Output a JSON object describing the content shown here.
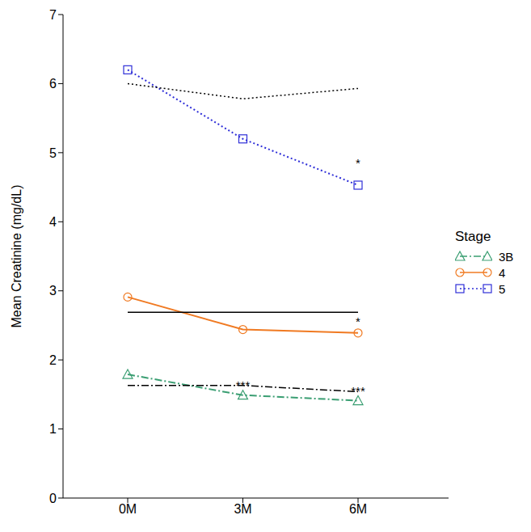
{
  "chart_data": {
    "type": "line",
    "y_label": "Mean Creatinine (mg/dL)",
    "legend_title": "Stage",
    "legend": "right",
    "categories": [
      "0M",
      "3M",
      "6M"
    ],
    "ylim": [
      0,
      7
    ],
    "yticks": [
      0,
      1,
      2,
      3,
      4,
      5,
      6,
      7
    ],
    "grid": false,
    "series": [
      {
        "name": "3B",
        "color": "#3a9e72",
        "values": [
          1.79,
          1.49,
          1.41
        ],
        "marker": "triangle",
        "line_style": "dashdot"
      },
      {
        "name": "4",
        "color": "#f07a22",
        "values": [
          2.91,
          2.44,
          2.39
        ],
        "marker": "circle",
        "line_style": "solid"
      },
      {
        "name": "5",
        "color": "#2f2fd8",
        "values": [
          6.2,
          5.2,
          4.53
        ],
        "marker": "square",
        "line_style": "dotted"
      },
      {
        "color": "#000000",
        "values": [
          6.0,
          5.78,
          5.93
        ],
        "marker": "none",
        "line_style": "dotted"
      },
      {
        "color": "#000000",
        "values": [
          2.69,
          2.69,
          2.69
        ],
        "marker": "none",
        "line_style": "solid"
      },
      {
        "color": "#000000",
        "values": [
          1.63,
          1.63,
          1.54
        ],
        "marker": "none",
        "line_style": "dashdot"
      }
    ],
    "annotations": [
      {
        "text": "*",
        "x": "6M",
        "y": 4.85
      },
      {
        "text": "*",
        "x": "6M",
        "y": 2.55
      },
      {
        "text": "***",
        "x": "3M",
        "y": 1.63
      },
      {
        "text": "***",
        "x": "6M",
        "y": 1.55
      }
    ]
  }
}
